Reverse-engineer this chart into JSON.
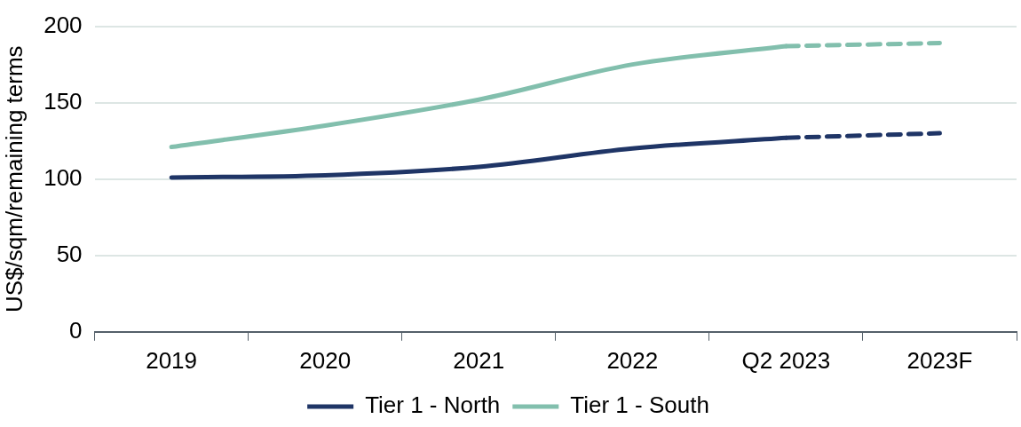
{
  "chart_data": {
    "type": "line",
    "ylabel": "US$/sqm/remaining terms",
    "categories": [
      "2019",
      "2020",
      "2021",
      "2022",
      "Q2 2023",
      "2023F"
    ],
    "series": [
      {
        "name": "Tier 1 - North",
        "color": "#1f3566",
        "line_style": "solid",
        "values": [
          101,
          102.5,
          108,
          120,
          127,
          null
        ]
      },
      {
        "name": "Tier 1 - South",
        "color": "#82bfad",
        "line_style": "solid",
        "values": [
          121,
          135,
          152,
          175,
          187,
          null
        ]
      },
      {
        "color": "#1f3566",
        "line_style": "dashed",
        "values": [
          null,
          null,
          null,
          null,
          127,
          130
        ]
      },
      {
        "color": "#82bfad",
        "line_style": "dashed",
        "values": [
          null,
          null,
          null,
          null,
          187,
          189
        ]
      }
    ],
    "ylim": [
      0,
      200
    ],
    "yticks": [
      0,
      50,
      100,
      150,
      200
    ],
    "grid": "y",
    "legend": "bottom",
    "marker": "none"
  }
}
